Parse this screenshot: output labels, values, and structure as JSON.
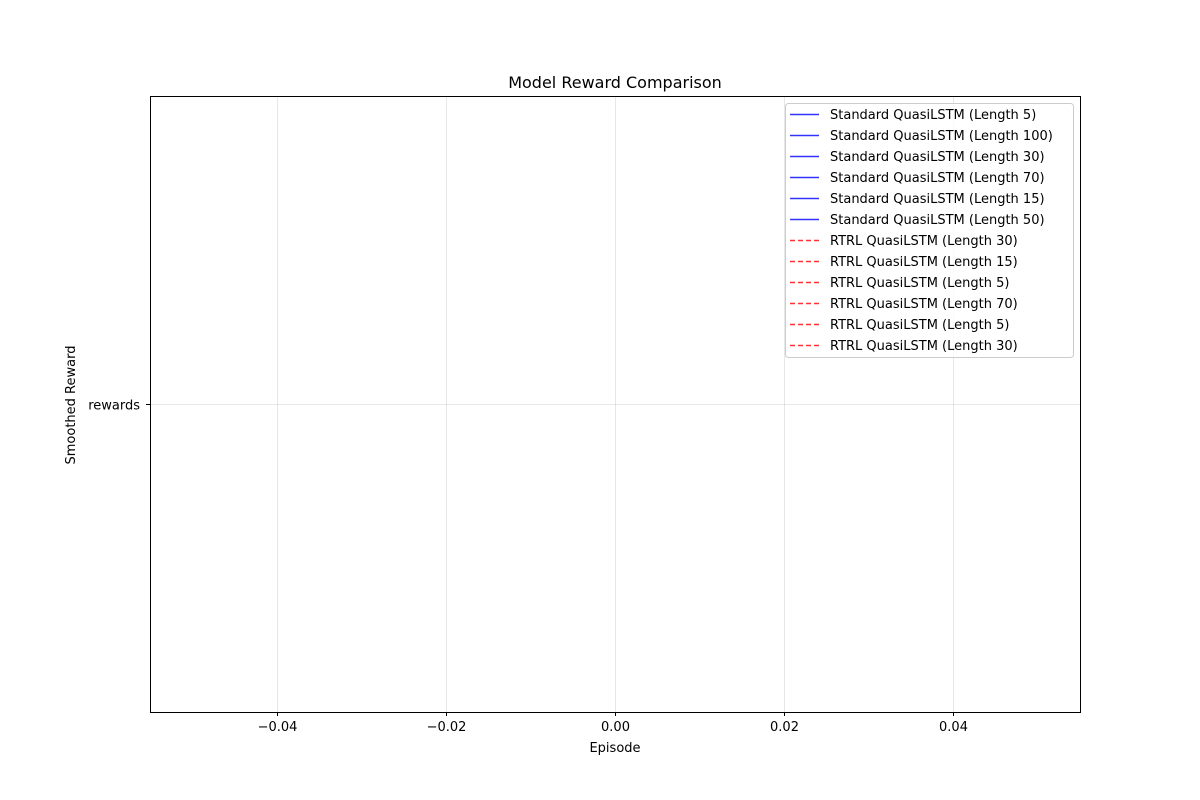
{
  "chart_data": {
    "type": "line",
    "title": "Model Reward Comparison",
    "xlabel": "Episode",
    "ylabel": "Smoothed Reward",
    "xlim": [
      -0.055,
      0.055
    ],
    "x_ticks": [
      -0.04,
      -0.02,
      0.0,
      0.02,
      0.04
    ],
    "x_tick_labels": [
      "−0.04",
      "−0.02",
      "0.00",
      "0.02",
      "0.04"
    ],
    "y_categories": [
      "rewards"
    ],
    "grid": true,
    "legend_position": "upper-right",
    "series": [
      {
        "name": "Standard QuasiLSTM (Length 5)",
        "color": "#0000ff",
        "style": "solid",
        "x": [],
        "y": []
      },
      {
        "name": "Standard QuasiLSTM (Length 100)",
        "color": "#0000ff",
        "style": "solid",
        "x": [],
        "y": []
      },
      {
        "name": "Standard QuasiLSTM (Length 30)",
        "color": "#0000ff",
        "style": "solid",
        "x": [],
        "y": []
      },
      {
        "name": "Standard QuasiLSTM (Length 70)",
        "color": "#0000ff",
        "style": "solid",
        "x": [],
        "y": []
      },
      {
        "name": "Standard QuasiLSTM (Length 15)",
        "color": "#0000ff",
        "style": "solid",
        "x": [],
        "y": []
      },
      {
        "name": "Standard QuasiLSTM (Length 50)",
        "color": "#0000ff",
        "style": "solid",
        "x": [],
        "y": []
      },
      {
        "name": "RTRL QuasiLSTM (Length 30)",
        "color": "#ff0000",
        "style": "dashed",
        "x": [],
        "y": []
      },
      {
        "name": "RTRL QuasiLSTM (Length 15)",
        "color": "#ff0000",
        "style": "dashed",
        "x": [],
        "y": []
      },
      {
        "name": "RTRL QuasiLSTM (Length 5)",
        "color": "#ff0000",
        "style": "dashed",
        "x": [],
        "y": []
      },
      {
        "name": "RTRL QuasiLSTM (Length 70)",
        "color": "#ff0000",
        "style": "dashed",
        "x": [],
        "y": []
      },
      {
        "name": "RTRL QuasiLSTM (Length 5)",
        "color": "#ff0000",
        "style": "dashed",
        "x": [],
        "y": []
      },
      {
        "name": "RTRL QuasiLSTM (Length 30)",
        "color": "#ff0000",
        "style": "dashed",
        "x": [],
        "y": []
      }
    ]
  }
}
